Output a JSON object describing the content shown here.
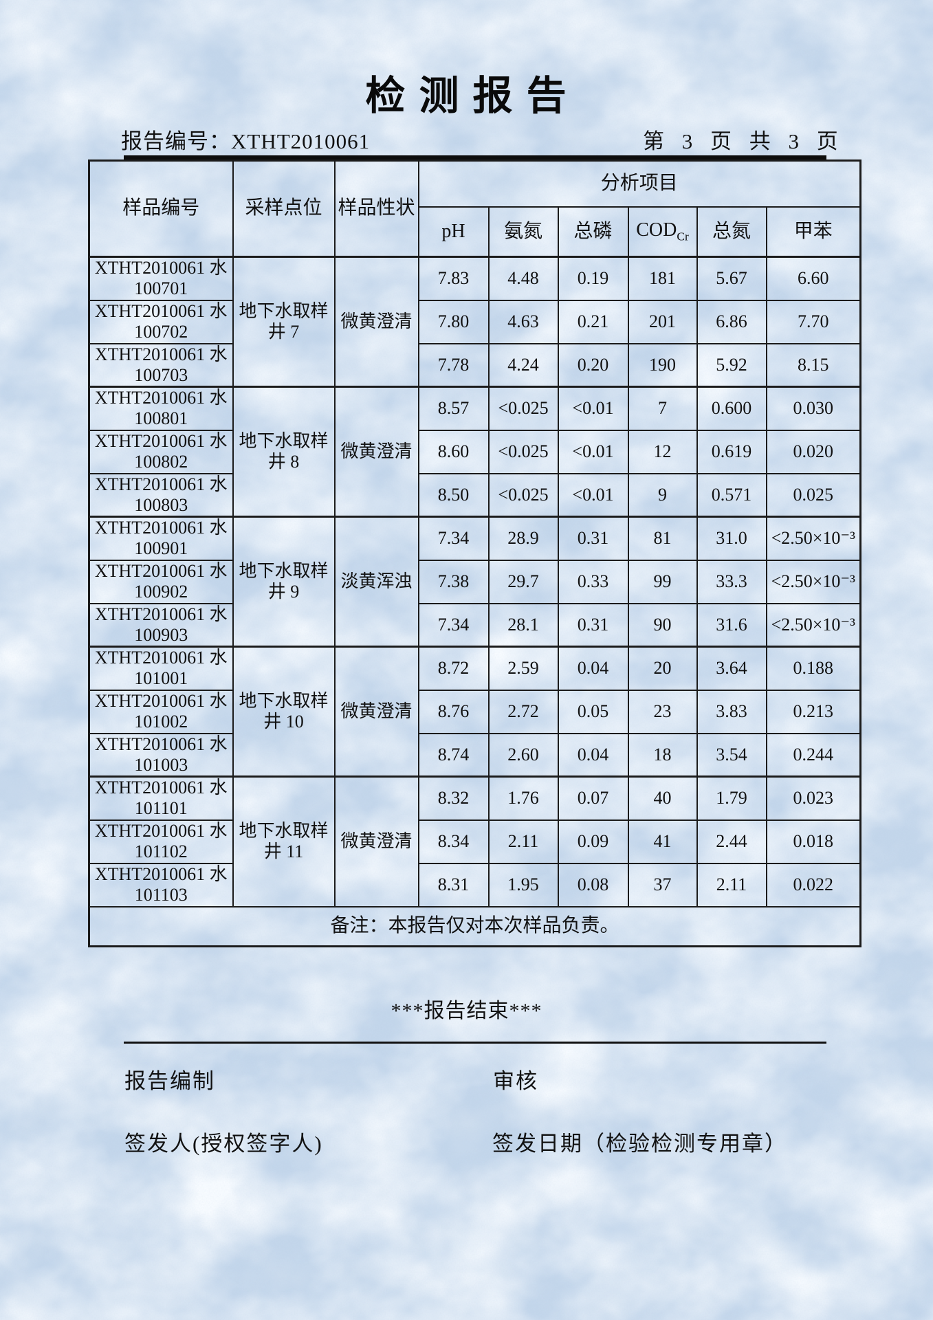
{
  "title": "检 测 报 告",
  "meta": {
    "report_no_label": "报告编号：",
    "report_no": "XTHT2010061",
    "page_info": "第 3 页 共 3 页"
  },
  "table": {
    "headers": {
      "sample_id": "样品编号",
      "location": "采样点位",
      "appearance": "样品性状",
      "analysis": "分析项目",
      "params": [
        "pH",
        "氨氮",
        "总磷",
        "COD",
        "总氮",
        "甲苯"
      ],
      "cod_sub": "Cr"
    },
    "groups": [
      {
        "location": "地下水取样井 7",
        "appearance": "微黄澄清",
        "rows": [
          {
            "id_line1": "XTHT2010061 水",
            "id_line2": "100701",
            "values": [
              "7.83",
              "4.48",
              "0.19",
              "181",
              "5.67",
              "6.60"
            ]
          },
          {
            "id_line1": "XTHT2010061 水",
            "id_line2": "100702",
            "values": [
              "7.80",
              "4.63",
              "0.21",
              "201",
              "6.86",
              "7.70"
            ]
          },
          {
            "id_line1": "XTHT2010061 水",
            "id_line2": "100703",
            "values": [
              "7.78",
              "4.24",
              "0.20",
              "190",
              "5.92",
              "8.15"
            ]
          }
        ]
      },
      {
        "location": "地下水取样井 8",
        "appearance": "微黄澄清",
        "rows": [
          {
            "id_line1": "XTHT2010061 水",
            "id_line2": "100801",
            "values": [
              "8.57",
              "<0.025",
              "<0.01",
              "7",
              "0.600",
              "0.030"
            ]
          },
          {
            "id_line1": "XTHT2010061 水",
            "id_line2": "100802",
            "values": [
              "8.60",
              "<0.025",
              "<0.01",
              "12",
              "0.619",
              "0.020"
            ]
          },
          {
            "id_line1": "XTHT2010061 水",
            "id_line2": "100803",
            "values": [
              "8.50",
              "<0.025",
              "<0.01",
              "9",
              "0.571",
              "0.025"
            ]
          }
        ]
      },
      {
        "location": "地下水取样井 9",
        "appearance": "淡黄浑浊",
        "rows": [
          {
            "id_line1": "XTHT2010061 水",
            "id_line2": "100901",
            "values": [
              "7.34",
              "28.9",
              "0.31",
              "81",
              "31.0",
              "<2.50×10⁻³"
            ]
          },
          {
            "id_line1": "XTHT2010061 水",
            "id_line2": "100902",
            "values": [
              "7.38",
              "29.7",
              "0.33",
              "99",
              "33.3",
              "<2.50×10⁻³"
            ]
          },
          {
            "id_line1": "XTHT2010061 水",
            "id_line2": "100903",
            "values": [
              "7.34",
              "28.1",
              "0.31",
              "90",
              "31.6",
              "<2.50×10⁻³"
            ]
          }
        ]
      },
      {
        "location": "地下水取样井 10",
        "appearance": "微黄澄清",
        "rows": [
          {
            "id_line1": "XTHT2010061 水",
            "id_line2": "101001",
            "values": [
              "8.72",
              "2.59",
              "0.04",
              "20",
              "3.64",
              "0.188"
            ]
          },
          {
            "id_line1": "XTHT2010061 水",
            "id_line2": "101002",
            "values": [
              "8.76",
              "2.72",
              "0.05",
              "23",
              "3.83",
              "0.213"
            ]
          },
          {
            "id_line1": "XTHT2010061 水",
            "id_line2": "101003",
            "values": [
              "8.74",
              "2.60",
              "0.04",
              "18",
              "3.54",
              "0.244"
            ]
          }
        ]
      },
      {
        "location": "地下水取样井 11",
        "appearance": "微黄澄清",
        "rows": [
          {
            "id_line1": "XTHT2010061 水",
            "id_line2": "101101",
            "values": [
              "8.32",
              "1.76",
              "0.07",
              "40",
              "1.79",
              "0.023"
            ]
          },
          {
            "id_line1": "XTHT2010061 水",
            "id_line2": "101102",
            "values": [
              "8.34",
              "2.11",
              "0.09",
              "41",
              "2.44",
              "0.018"
            ]
          },
          {
            "id_line1": "XTHT2010061 水",
            "id_line2": "101103",
            "values": [
              "8.31",
              "1.95",
              "0.08",
              "37",
              "2.11",
              "0.022"
            ]
          }
        ]
      }
    ],
    "note": "备注：本报告仅对本次样品负责。"
  },
  "footer": {
    "end_mark": "***报告结束***",
    "prepared_label": "报告编制",
    "review_label": "审核",
    "issuer_label": "签发人(授权签字人)",
    "issue_date_label": "签发日期（检验检测专用章）"
  },
  "colors": {
    "paper": "#c3d6eb",
    "text": "#111111",
    "border": "#1b1b1b"
  }
}
